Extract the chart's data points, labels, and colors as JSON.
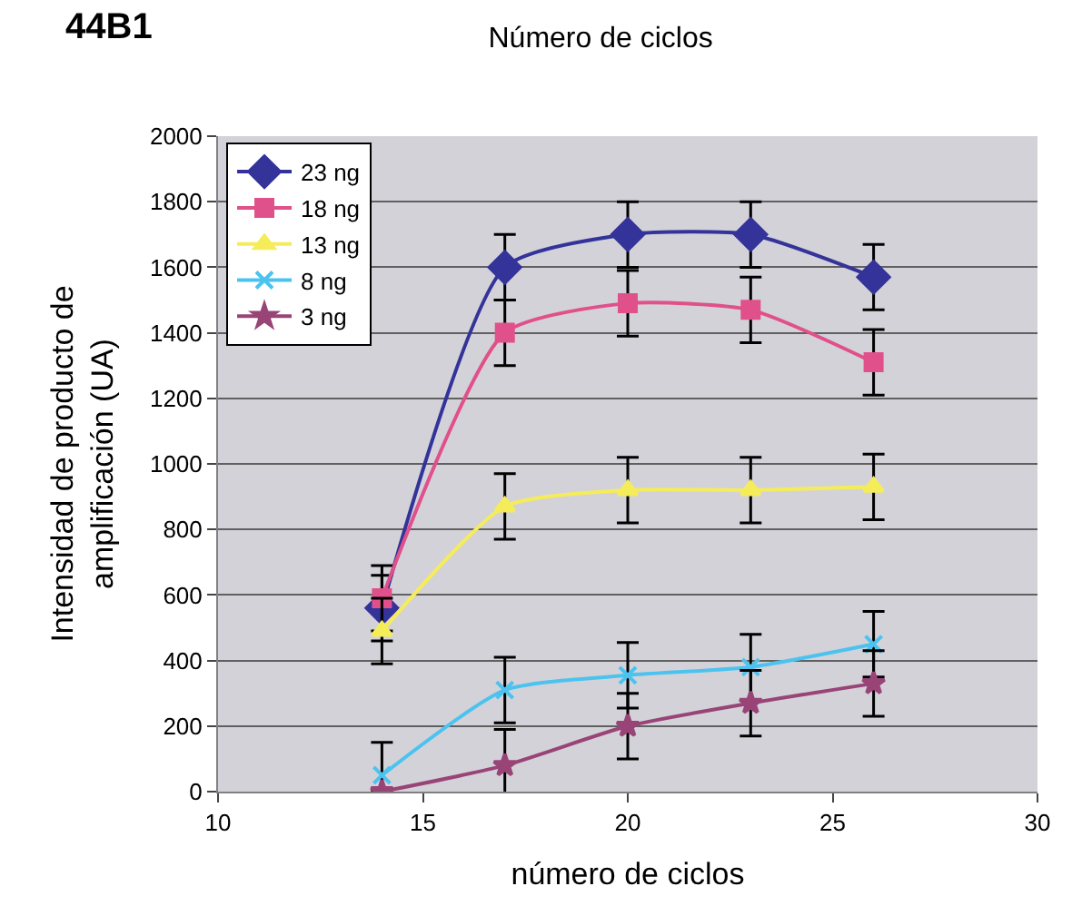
{
  "chart_data": {
    "type": "line",
    "title": "Número de ciclos",
    "annotations": [
      "44B1"
    ],
    "xlabel": "número de ciclos",
    "ylabel": "Intensidad de producto de\namplificación (UA)",
    "x": [
      14,
      17,
      20,
      23,
      26
    ],
    "xlim": [
      10,
      30
    ],
    "xticks": [
      10,
      15,
      20,
      25,
      30
    ],
    "ylim": [
      0,
      2000
    ],
    "yticks": [
      0,
      200,
      400,
      600,
      800,
      1000,
      1200,
      1400,
      1600,
      1800,
      2000
    ],
    "grid": "y",
    "legend": "top left",
    "series": [
      {
        "name": "23 ng",
        "color": "#333399",
        "marker": "diamond",
        "values": [
          560,
          1600,
          1700,
          1700,
          1570
        ],
        "errors": [
          100,
          100,
          100,
          100,
          100
        ]
      },
      {
        "name": "18 ng",
        "color": "#e0508a",
        "marker": "square",
        "values": [
          590,
          1400,
          1490,
          1470,
          1310
        ],
        "errors": [
          100,
          100,
          100,
          100,
          100
        ]
      },
      {
        "name": "13 ng",
        "color": "#f5ec5a",
        "marker": "triangle",
        "values": [
          490,
          870,
          920,
          920,
          930
        ],
        "errors": [
          100,
          100,
          100,
          100,
          100
        ]
      },
      {
        "name": "8 ng",
        "color": "#4cc3ef",
        "marker": "cross",
        "values": [
          50,
          310,
          355,
          380,
          450
        ],
        "errors": [
          100,
          100,
          100,
          100,
          100
        ]
      },
      {
        "name": "3 ng",
        "color": "#994477",
        "marker": "star",
        "values": [
          0,
          80,
          200,
          270,
          330
        ],
        "errors": [
          null,
          110,
          100,
          100,
          100
        ]
      }
    ]
  }
}
